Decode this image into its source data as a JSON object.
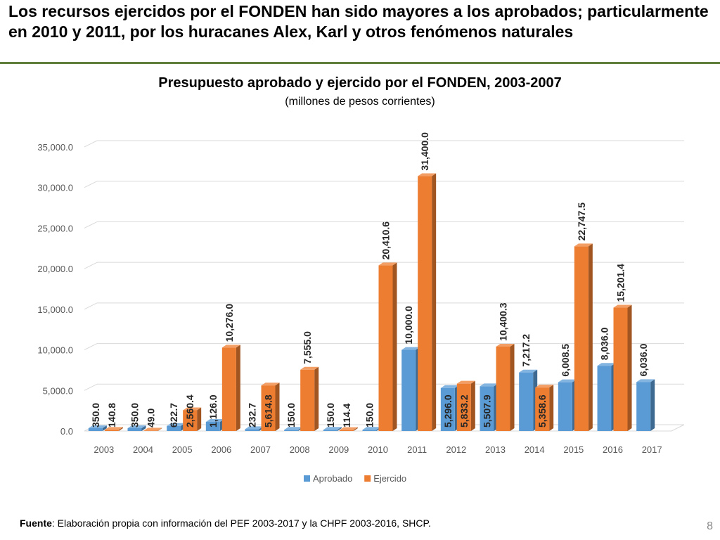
{
  "slide": {
    "title": "Los recursos ejercidos por el FONDEN han sido mayores a los aprobados; particularmente en 2010 y 2011, por los huracanes Alex, Karl y otros fenómenos naturales",
    "source_label": "Fuente",
    "source_text": ": Elaboración propia con información del PEF 2003-2017 y la CHPF 2003-2016, SHCP.",
    "page_number": "8"
  },
  "colors": {
    "rule": "#5f7f3a",
    "aprobado": "#5b9bd5",
    "ejercido": "#ed7d31",
    "grid": "#d9d9d9",
    "text": "#595959"
  },
  "chart_data": {
    "type": "bar",
    "title": "Presupuesto aprobado y ejercido por el FONDEN, 2003-2007",
    "subtitle": "(millones de pesos corrientes)",
    "xlabel": "",
    "ylabel": "",
    "ylim": [
      0,
      35000
    ],
    "yticks": [
      "0.0",
      "5,000.0",
      "10,000.0",
      "15,000.0",
      "20,000.0",
      "25,000.0",
      "30,000.0",
      "35,000.0"
    ],
    "ytick_values": [
      0,
      5000,
      10000,
      15000,
      20000,
      25000,
      30000,
      35000
    ],
    "grid": true,
    "legend_position": "bottom",
    "categories": [
      "2003",
      "2004",
      "2005",
      "2006",
      "2007",
      "2008",
      "2009",
      "2010",
      "2011",
      "2012",
      "2013",
      "2014",
      "2015",
      "2016",
      "2017"
    ],
    "series": [
      {
        "name": "Aprobado",
        "values": [
          350.0,
          350.0,
          622.7,
          1126.0,
          232.7,
          150.0,
          150.0,
          150.0,
          10000.0,
          5296.0,
          5507.9,
          7217.2,
          6008.5,
          8036.0,
          6036.0
        ],
        "labels": [
          "350.0",
          "350.0",
          "622.7",
          "1,126.0",
          "232.7",
          "150.0",
          "150.0",
          "150.0",
          "10,000.0",
          "5,296.0",
          "5,507.9",
          "7,217.2",
          "6,008.5",
          "8,036.0",
          "6,036.0"
        ]
      },
      {
        "name": "Ejercido",
        "values": [
          140.8,
          49.0,
          2560.4,
          10276.0,
          5614.8,
          7555.0,
          114.4,
          20410.6,
          31400.0,
          5833.2,
          10400.3,
          5358.6,
          22747.5,
          15201.4,
          null
        ],
        "labels": [
          "140.8",
          "49.0",
          "2,560.4",
          "10,276.0",
          "5,614.8",
          "7,555.0",
          "114.4",
          "20,410.6",
          "31,400.0",
          "5,833.2",
          "10,400.3",
          "5,358.6",
          "22,747.5",
          "15,201.4",
          null
        ]
      }
    ]
  }
}
